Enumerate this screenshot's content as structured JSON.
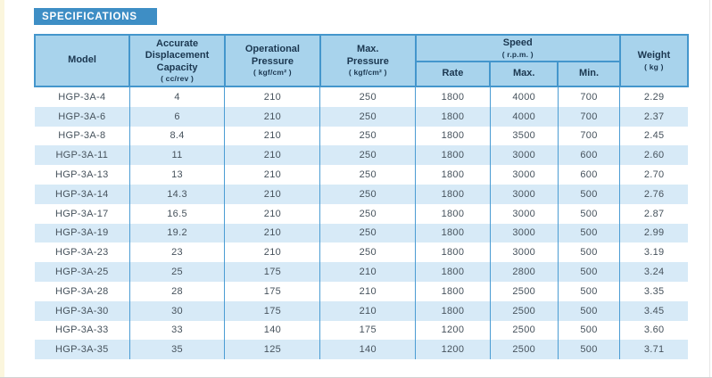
{
  "banner": {
    "title": "SPECIFICATIONS"
  },
  "colors": {
    "banner_blue": "#3e8ec5",
    "header_fill": "#a8d3ec",
    "border_blue": "#4496cc",
    "stripe_blue": "#d7eaf7",
    "header_text": "#1b3750",
    "body_text": "#46525c",
    "page_edge_cream": "#fbf6dd"
  },
  "table": {
    "header": {
      "model": {
        "title": "Model"
      },
      "displacement": {
        "title": "Accurate\nDisplacement\nCapacity",
        "unit": "( cc/rev )"
      },
      "operational_pressure": {
        "title": "Operational\nPressure",
        "unit": "( kgf/cm² )"
      },
      "max_pressure": {
        "title": "Max.\nPressure",
        "unit": "( kgf/cm² )"
      },
      "speed": {
        "title": "Speed",
        "unit": "( r.p.m. )",
        "sub": [
          "Rate",
          "Max.",
          "Min."
        ]
      },
      "weight": {
        "title": "Weight",
        "unit": "( kg )"
      }
    },
    "column_ids": [
      "model",
      "displacement",
      "operational-pressure",
      "max-pressure",
      "speed-rate",
      "speed-max",
      "speed-min",
      "weight"
    ],
    "rows": [
      [
        "HGP-3A-4",
        "4",
        "210",
        "250",
        "1800",
        "4000",
        "700",
        "2.29"
      ],
      [
        "HGP-3A-6",
        "6",
        "210",
        "250",
        "1800",
        "4000",
        "700",
        "2.37"
      ],
      [
        "HGP-3A-8",
        "8.4",
        "210",
        "250",
        "1800",
        "3500",
        "700",
        "2.45"
      ],
      [
        "HGP-3A-11",
        "11",
        "210",
        "250",
        "1800",
        "3000",
        "600",
        "2.60"
      ],
      [
        "HGP-3A-13",
        "13",
        "210",
        "250",
        "1800",
        "3000",
        "600",
        "2.70"
      ],
      [
        "HGP-3A-14",
        "14.3",
        "210",
        "250",
        "1800",
        "3000",
        "500",
        "2.76"
      ],
      [
        "HGP-3A-17",
        "16.5",
        "210",
        "250",
        "1800",
        "3000",
        "500",
        "2.87"
      ],
      [
        "HGP-3A-19",
        "19.2",
        "210",
        "250",
        "1800",
        "3000",
        "500",
        "2.99"
      ],
      [
        "HGP-3A-23",
        "23",
        "210",
        "250",
        "1800",
        "3000",
        "500",
        "3.19"
      ],
      [
        "HGP-3A-25",
        "25",
        "175",
        "210",
        "1800",
        "2800",
        "500",
        "3.24"
      ],
      [
        "HGP-3A-28",
        "28",
        "175",
        "210",
        "1800",
        "2500",
        "500",
        "3.35"
      ],
      [
        "HGP-3A-30",
        "30",
        "175",
        "210",
        "1800",
        "2500",
        "500",
        "3.45"
      ],
      [
        "HGP-3A-33",
        "33",
        "140",
        "175",
        "1200",
        "2500",
        "500",
        "3.60"
      ],
      [
        "HGP-3A-35",
        "35",
        "125",
        "140",
        "1200",
        "2500",
        "500",
        "3.71"
      ]
    ]
  }
}
